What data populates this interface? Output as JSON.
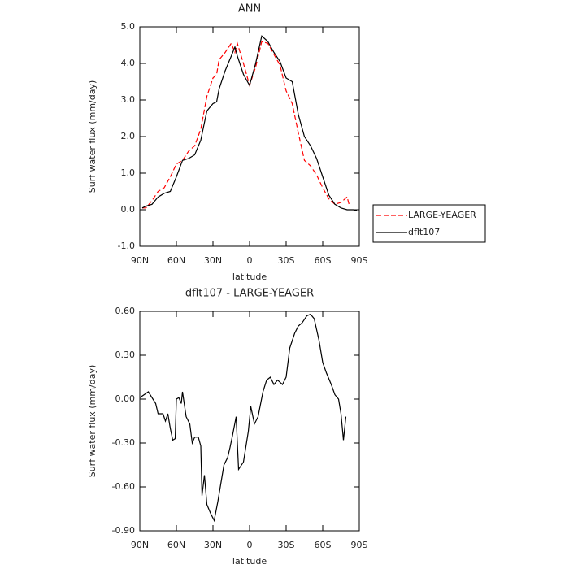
{
  "chart_data": [
    {
      "type": "line",
      "title": "ANN",
      "xlabel": "latitude",
      "ylabel": "Surf water flux (mm/day)",
      "x": [
        88,
        85,
        80,
        75,
        70,
        65,
        60,
        55,
        50,
        45,
        40,
        35,
        30,
        27,
        25,
        20,
        15,
        12,
        10,
        5,
        0,
        -5,
        -10,
        -15,
        -20,
        -25,
        -30,
        -35,
        -40,
        -45,
        -50,
        -55,
        -60,
        -65,
        -70,
        -75,
        -80,
        -82,
        -85,
        -88
      ],
      "series": [
        {
          "name": "LARGE-YEAGER",
          "color": "#ff0000",
          "linestyle": "dashed",
          "values": [
            0.05,
            0.05,
            0.25,
            0.5,
            0.6,
            0.9,
            1.25,
            1.35,
            1.6,
            1.75,
            2.2,
            3.1,
            3.6,
            3.7,
            4.1,
            4.3,
            4.55,
            4.3,
            4.55,
            4.0,
            3.4,
            3.9,
            4.6,
            4.55,
            4.25,
            3.95,
            3.25,
            2.9,
            2.1,
            1.35,
            1.2,
            0.95,
            0.6,
            0.3,
            0.15,
            0.2,
            0.35,
            0.1,
            null,
            null
          ]
        },
        {
          "name": "dflt107",
          "color": "#000000",
          "linestyle": "solid",
          "values": [
            0.05,
            0.1,
            0.15,
            0.35,
            0.45,
            0.5,
            0.9,
            1.35,
            1.4,
            1.5,
            1.9,
            2.7,
            2.9,
            2.95,
            3.3,
            3.8,
            4.2,
            4.45,
            4.2,
            3.7,
            3.4,
            4.0,
            4.75,
            4.6,
            4.3,
            4.05,
            3.6,
            3.5,
            2.6,
            2.0,
            1.75,
            1.4,
            0.9,
            0.4,
            0.15,
            0.05,
            0.0,
            0.0,
            0.0,
            -0.02
          ]
        }
      ],
      "xlim": [
        90,
        -90
      ],
      "xticks": [
        {
          "value": 90,
          "label": "90N"
        },
        {
          "value": 60,
          "label": "60N"
        },
        {
          "value": 30,
          "label": "30N"
        },
        0,
        {
          "value": -30,
          "label": "30S"
        },
        {
          "value": -60,
          "label": "60S"
        },
        {
          "value": -90,
          "label": "90S"
        }
      ],
      "ylim": [
        -1,
        5
      ],
      "yticks": [
        {
          "value": -1,
          "label": "-1.0"
        },
        {
          "value": 0,
          "label": "0.0"
        },
        {
          "value": 1,
          "label": "1.0"
        },
        {
          "value": 2,
          "label": "2.0"
        },
        {
          "value": 3,
          "label": "3.0"
        },
        {
          "value": 4,
          "label": "4.0"
        },
        {
          "value": 5,
          "label": "5.0"
        }
      ],
      "legend": "right"
    },
    {
      "type": "line",
      "title": "dflt107 - LARGE-YEAGER",
      "xlabel": "latitude",
      "ylabel": "Surf water flux (mm/day)",
      "x": [
        90,
        83,
        77,
        75,
        71,
        69,
        67,
        65,
        63,
        61,
        60,
        58,
        56,
        55,
        52,
        49,
        47,
        45,
        42,
        40,
        39,
        37,
        35,
        32,
        29,
        26,
        21,
        18,
        16,
        14,
        11,
        9,
        5,
        1,
        -1,
        -4,
        -7,
        -11,
        -14,
        -17,
        -20,
        -23,
        -27,
        -30,
        -33,
        -37,
        -40,
        -43,
        -47,
        -50,
        -53,
        -57,
        -60,
        -63,
        -67,
        -70,
        -73,
        -75,
        -77,
        -79
      ],
      "values": [
        0.01,
        0.05,
        -0.03,
        -0.1,
        -0.1,
        -0.15,
        -0.1,
        -0.2,
        -0.28,
        -0.27,
        0.0,
        0.01,
        -0.03,
        0.05,
        -0.12,
        -0.17,
        -0.3,
        -0.26,
        -0.26,
        -0.32,
        -0.66,
        -0.52,
        -0.72,
        -0.78,
        -0.83,
        -0.7,
        -0.45,
        -0.4,
        -0.33,
        -0.25,
        -0.12,
        -0.48,
        -0.43,
        -0.22,
        -0.05,
        -0.17,
        -0.12,
        0.05,
        0.13,
        0.15,
        0.1,
        0.13,
        0.1,
        0.15,
        0.35,
        0.45,
        0.5,
        0.52,
        0.57,
        0.58,
        0.55,
        0.4,
        0.25,
        0.18,
        0.1,
        0.03,
        0.0,
        -0.1,
        -0.28,
        -0.12
      ],
      "color": "#000000",
      "xlim": [
        90,
        -90
      ],
      "xticks": [
        {
          "value": 90,
          "label": "90N"
        },
        {
          "value": 60,
          "label": "60N"
        },
        {
          "value": 30,
          "label": "30N"
        },
        0,
        {
          "value": -30,
          "label": "30S"
        },
        {
          "value": -60,
          "label": "60S"
        },
        {
          "value": -90,
          "label": "90S"
        }
      ],
      "ylim": [
        -0.9,
        0.6
      ],
      "yticks": [
        {
          "value": -0.9,
          "label": "-0.90"
        },
        {
          "value": -0.6,
          "label": "-0.60"
        },
        {
          "value": -0.3,
          "label": "-0.30"
        },
        {
          "value": 0,
          "label": "0.00"
        },
        {
          "value": 0.3,
          "label": "0.30"
        },
        {
          "value": 0.6,
          "label": "0.60"
        }
      ]
    }
  ]
}
